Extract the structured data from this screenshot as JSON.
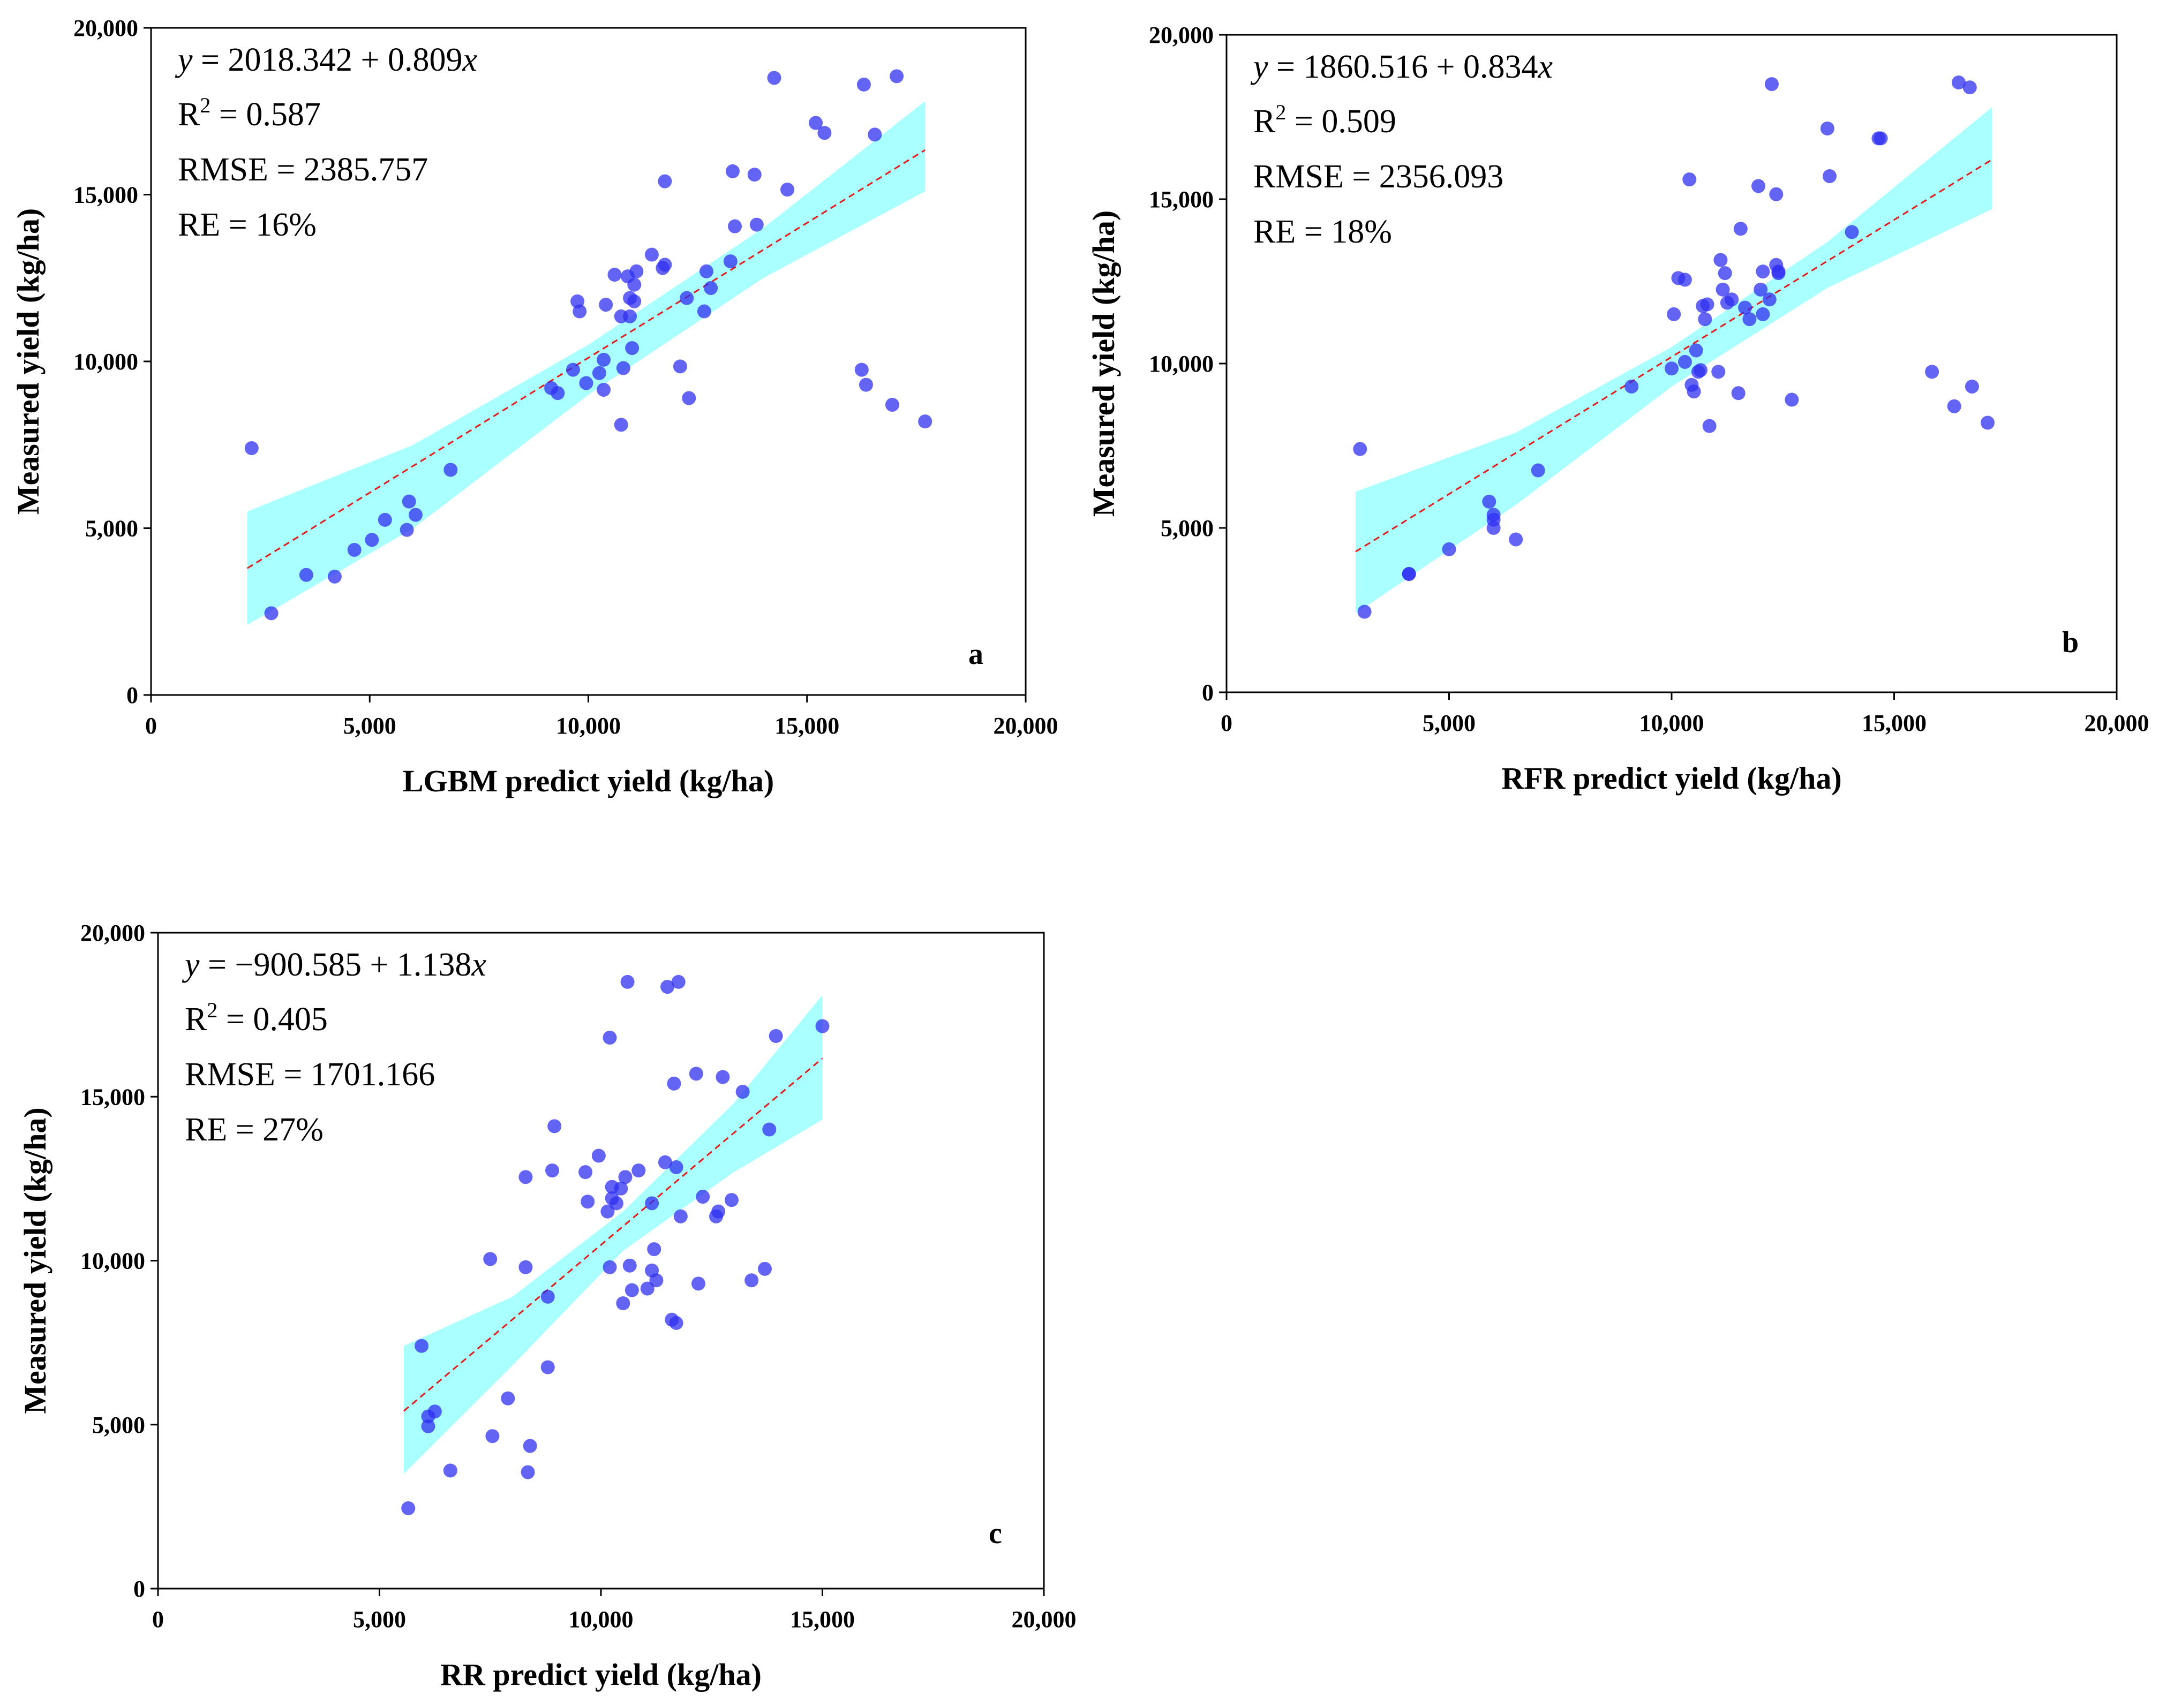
{
  "chart_data": [
    {
      "type": "scatter",
      "panel": "a",
      "xlabel": "LGBM predict yield (kg/ha)",
      "ylabel": "Measured yield (kg/ha)",
      "xlim": [
        0,
        20000
      ],
      "ylim": [
        0,
        20000
      ],
      "x_ticks": [
        "0",
        "5,000",
        "10,000",
        "15,000",
        "20,000"
      ],
      "y_ticks": [
        "0",
        "5,000",
        "10,000",
        "15,000",
        "20,000"
      ],
      "annotations": {
        "equation_lhs": "y",
        "equation_rhs": " = 2018.342 + 0.809",
        "equation_var": "x",
        "r2_label": "R",
        "r2_sup": "2",
        "r2_value": " = 0.587",
        "rmse": "RMSE = 2385.757",
        "re": "RE = 16%"
      },
      "fit": {
        "intercept": 2018.342,
        "slope": 0.809,
        "x_range": [
          2200,
          17700
        ]
      },
      "band": {
        "x": [
          2200,
          6000,
          10000,
          14000,
          17700
        ],
        "upper": [
          5500,
          7500,
          10500,
          14000,
          17800
        ],
        "lower": [
          2100,
          5000,
          9000,
          12500,
          15100
        ]
      },
      "points": [
        [
          2300,
          7400
        ],
        [
          2750,
          2450
        ],
        [
          3550,
          3600
        ],
        [
          4200,
          3550
        ],
        [
          4650,
          4350
        ],
        [
          5050,
          4650
        ],
        [
          5350,
          5250
        ],
        [
          5850,
          4950
        ],
        [
          5900,
          5800
        ],
        [
          6050,
          5400
        ],
        [
          6850,
          6750
        ],
        [
          9150,
          9200
        ],
        [
          9300,
          9050
        ],
        [
          9650,
          9750
        ],
        [
          9750,
          11800
        ],
        [
          9800,
          11500
        ],
        [
          9950,
          9350
        ],
        [
          10250,
          9650
        ],
        [
          10350,
          9150
        ],
        [
          10350,
          10050
        ],
        [
          10400,
          11700
        ],
        [
          10600,
          12600
        ],
        [
          10750,
          8100
        ],
        [
          10750,
          11350
        ],
        [
          10800,
          9800
        ],
        [
          10900,
          12550
        ],
        [
          10950,
          11900
        ],
        [
          10950,
          11350
        ],
        [
          11000,
          10400
        ],
        [
          11050,
          12300
        ],
        [
          11050,
          11800
        ],
        [
          11100,
          12700
        ],
        [
          11450,
          13200
        ],
        [
          11700,
          12800
        ],
        [
          11750,
          12900
        ],
        [
          11750,
          15400
        ],
        [
          12100,
          9850
        ],
        [
          12250,
          11900
        ],
        [
          12300,
          8900
        ],
        [
          12650,
          11500
        ],
        [
          12700,
          12700
        ],
        [
          12800,
          12200
        ],
        [
          13250,
          13000
        ],
        [
          13300,
          15700
        ],
        [
          13350,
          14050
        ],
        [
          13800,
          15600
        ],
        [
          13850,
          14100
        ],
        [
          14250,
          18500
        ],
        [
          14550,
          15150
        ],
        [
          15200,
          17150
        ],
        [
          15400,
          16850
        ],
        [
          16250,
          9750
        ],
        [
          16300,
          18300
        ],
        [
          16350,
          9300
        ],
        [
          16550,
          16800
        ],
        [
          16950,
          8700
        ],
        [
          17050,
          18550
        ],
        [
          17700,
          8200
        ]
      ]
    },
    {
      "type": "scatter",
      "panel": "b",
      "xlabel": "RFR predict yield (kg/ha)",
      "ylabel": "Measured yield (kg/ha)",
      "xlim": [
        0,
        20000
      ],
      "ylim": [
        0,
        20000
      ],
      "x_ticks": [
        "0",
        "5,000",
        "10,000",
        "15,000",
        "20,000"
      ],
      "y_ticks": [
        "0",
        "5,000",
        "10,000",
        "15,000",
        "20,000"
      ],
      "annotations": {
        "equation_lhs": "y",
        "equation_rhs": " = 1860.516 + 0.834",
        "equation_var": "x",
        "r2_label": "R",
        "r2_sup": "2",
        "r2_value": " = 0.509",
        "rmse": "RMSE = 2356.093",
        "re": "RE = 18%"
      },
      "fit": {
        "intercept": 1860.516,
        "slope": 0.834,
        "x_range": [
          2900,
          17200
        ]
      },
      "band": {
        "x": [
          2900,
          6500,
          10000,
          13500,
          17200
        ],
        "upper": [
          6100,
          7900,
          10500,
          13700,
          17800
        ],
        "lower": [
          2400,
          5700,
          9300,
          12300,
          14700
        ]
      },
      "points": [
        [
          3000,
          7400
        ],
        [
          3100,
          2450
        ],
        [
          4100,
          3600
        ],
        [
          4100,
          3600
        ],
        [
          5000,
          4350
        ],
        [
          5900,
          5800
        ],
        [
          6000,
          5400
        ],
        [
          6000,
          5250
        ],
        [
          6000,
          5000
        ],
        [
          6500,
          4650
        ],
        [
          7000,
          6750
        ],
        [
          9100,
          9300
        ],
        [
          10000,
          9850
        ],
        [
          10050,
          11500
        ],
        [
          10150,
          12600
        ],
        [
          10300,
          12550
        ],
        [
          10300,
          10050
        ],
        [
          10400,
          15600
        ],
        [
          10450,
          9350
        ],
        [
          10500,
          9150
        ],
        [
          10550,
          10400
        ],
        [
          10600,
          9750
        ],
        [
          10650,
          9800
        ],
        [
          10700,
          11750
        ],
        [
          10750,
          11350
        ],
        [
          10800,
          11800
        ],
        [
          10850,
          8100
        ],
        [
          11050,
          9750
        ],
        [
          11100,
          13150
        ],
        [
          11150,
          12250
        ],
        [
          11200,
          12750
        ],
        [
          11250,
          11850
        ],
        [
          11350,
          11950
        ],
        [
          11500,
          9100
        ],
        [
          11550,
          14100
        ],
        [
          11650,
          11700
        ],
        [
          11750,
          11350
        ],
        [
          11950,
          15400
        ],
        [
          12000,
          12250
        ],
        [
          12050,
          12800
        ],
        [
          12050,
          11500
        ],
        [
          12200,
          11950
        ],
        [
          12250,
          18500
        ],
        [
          12350,
          15150
        ],
        [
          12350,
          13000
        ],
        [
          12400,
          12750
        ],
        [
          12400,
          12800
        ],
        [
          12700,
          8900
        ],
        [
          13500,
          17150
        ],
        [
          13550,
          15700
        ],
        [
          14050,
          14000
        ],
        [
          14650,
          16850
        ],
        [
          14700,
          16850
        ],
        [
          15850,
          9750
        ],
        [
          16350,
          8700
        ],
        [
          16450,
          18550
        ],
        [
          16700,
          18400
        ],
        [
          16750,
          9300
        ],
        [
          17100,
          8200
        ]
      ]
    },
    {
      "type": "scatter",
      "panel": "c",
      "xlabel": "RR predict yield (kg/ha)",
      "ylabel": "Measured yield (kg/ha)",
      "xlim": [
        0,
        20000
      ],
      "ylim": [
        0,
        20000
      ],
      "x_ticks": [
        "0",
        "5,000",
        "10,000",
        "15,000",
        "20,000"
      ],
      "y_ticks": [
        "0",
        "5,000",
        "10,000",
        "15,000",
        "20,000"
      ],
      "annotations": {
        "equation_lhs": "y",
        "equation_rhs": " = −900.585 + 1.138",
        "equation_var": "x",
        "r2_label": "R",
        "r2_sup": "2",
        "r2_value": " = 0.405",
        "rmse": "RMSE = 1701.166",
        "re": "RE = 27%"
      },
      "fit": {
        "intercept": -900.585,
        "slope": 1.138,
        "x_range": [
          5550,
          15000
        ]
      },
      "band": {
        "x": [
          5550,
          8000,
          10500,
          13000,
          15000
        ],
        "upper": [
          7400,
          8900,
          11500,
          14800,
          18100
        ],
        "lower": [
          3500,
          6800,
          10300,
          12700,
          14300
        ]
      },
      "points": [
        [
          5650,
          2450
        ],
        [
          5950,
          7400
        ],
        [
          6100,
          5250
        ],
        [
          6100,
          4950
        ],
        [
          6250,
          5400
        ],
        [
          6600,
          3600
        ],
        [
          7500,
          10050
        ],
        [
          7550,
          4650
        ],
        [
          7900,
          5800
        ],
        [
          8300,
          12550
        ],
        [
          8300,
          9800
        ],
        [
          8350,
          3550
        ],
        [
          8400,
          4350
        ],
        [
          8800,
          8900
        ],
        [
          8800,
          6750
        ],
        [
          8900,
          12750
        ],
        [
          8950,
          14100
        ],
        [
          9650,
          12700
        ],
        [
          9700,
          11800
        ],
        [
          9950,
          13200
        ],
        [
          10150,
          11500
        ],
        [
          10200,
          9800
        ],
        [
          10200,
          16800
        ],
        [
          10250,
          12250
        ],
        [
          10250,
          11900
        ],
        [
          10350,
          11750
        ],
        [
          10450,
          12200
        ],
        [
          10500,
          8700
        ],
        [
          10550,
          12550
        ],
        [
          10600,
          18500
        ],
        [
          10650,
          9850
        ],
        [
          10700,
          9100
        ],
        [
          10850,
          12750
        ],
        [
          11050,
          9150
        ],
        [
          11150,
          9700
        ],
        [
          11150,
          11750
        ],
        [
          11200,
          10350
        ],
        [
          11250,
          9400
        ],
        [
          11450,
          13000
        ],
        [
          11500,
          18350
        ],
        [
          11600,
          8200
        ],
        [
          11650,
          15400
        ],
        [
          11700,
          12850
        ],
        [
          11700,
          8100
        ],
        [
          11750,
          18500
        ],
        [
          11800,
          11350
        ],
        [
          12150,
          15700
        ],
        [
          12200,
          9300
        ],
        [
          12300,
          11950
        ],
        [
          12600,
          11350
        ],
        [
          12650,
          11500
        ],
        [
          12750,
          15600
        ],
        [
          12950,
          11850
        ],
        [
          13200,
          15150
        ],
        [
          13400,
          9400
        ],
        [
          13700,
          9750
        ],
        [
          13800,
          14000
        ],
        [
          13950,
          16850
        ],
        [
          15000,
          17150
        ]
      ]
    }
  ]
}
